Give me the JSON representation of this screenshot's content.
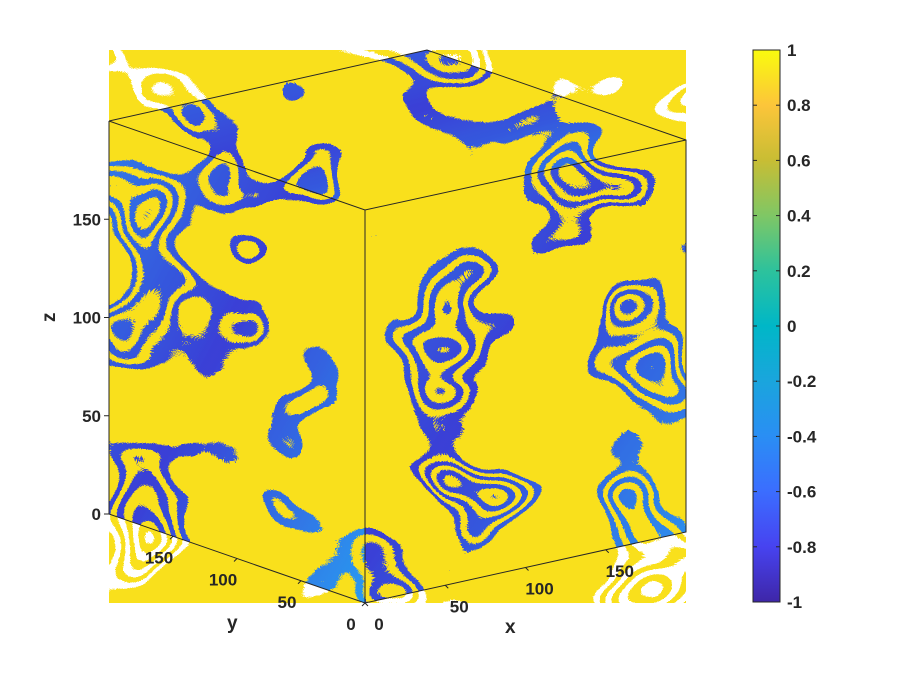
{
  "chart_data": {
    "type": "heatmap",
    "subtype": "3d-volume-slice-cube",
    "title": "",
    "xlabel": "x",
    "ylabel": "y",
    "zlabel": "z",
    "xlim": [
      0,
      200
    ],
    "ylim": [
      0,
      200
    ],
    "zlim": [
      0,
      200
    ],
    "xticks": [
      "0",
      "50",
      "100",
      "150"
    ],
    "yticks": [
      "0",
      "50",
      "100",
      "150"
    ],
    "zticks": [
      "0",
      "50",
      "100",
      "150"
    ],
    "colorbar": {
      "colormap": "parula",
      "clim": [
        -1,
        1
      ],
      "ticks": [
        "-1",
        "-0.8",
        "-0.6",
        "-0.4",
        "-0.2",
        "0",
        "0.2",
        "0.4",
        "0.6",
        "0.8",
        "1"
      ],
      "stops": [
        "#3e26a8",
        "#4743f0",
        "#3b6dff",
        "#2a8ef4",
        "#1aa5dd",
        "#00b7c7",
        "#2dc29c",
        "#7fc765",
        "#c8bd34",
        "#fcc53a",
        "#f9fb0e"
      ]
    },
    "grid": false
  }
}
